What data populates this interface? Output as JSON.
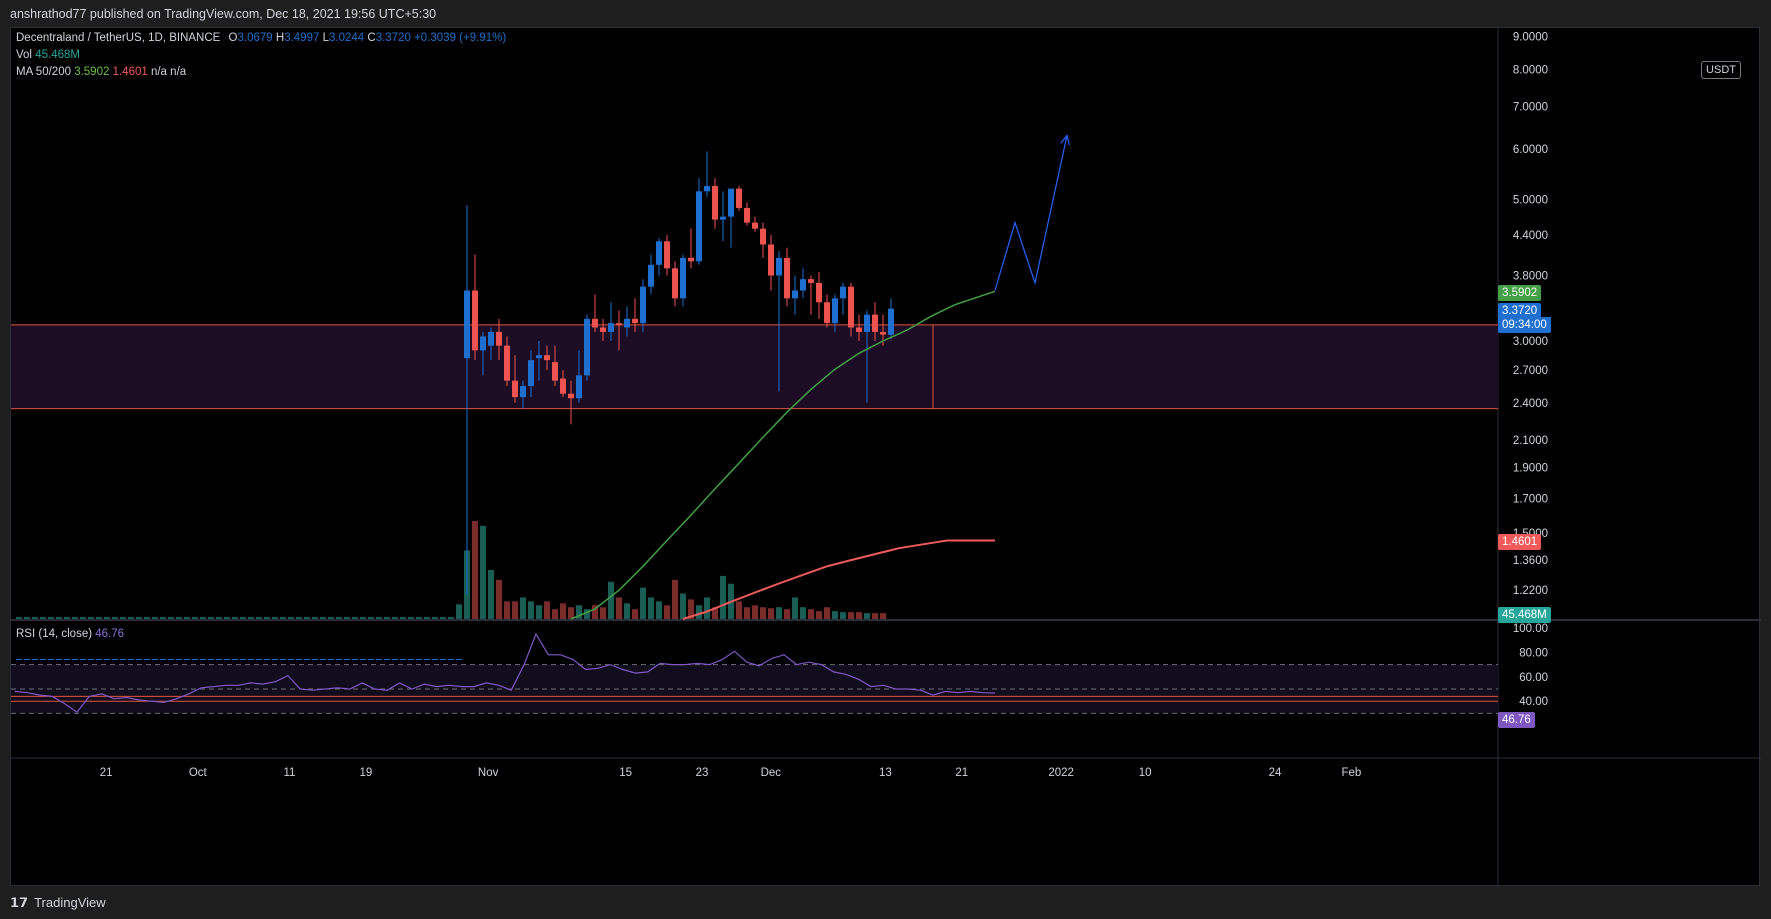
{
  "header": {
    "published": "anshrathod77 published on TradingView.com, Dec 18, 2021 19:56 UTC+5:30"
  },
  "legend": {
    "symbol": "Decentraland / TetherUS, 1D, BINANCE",
    "o_label": "O",
    "o": "3.0679",
    "h_label": "H",
    "h": "3.4997",
    "l_label": "L",
    "l": "3.0244",
    "c_label": "C",
    "c": "3.3720",
    "chg": "+0.3039 (+9.91%)",
    "vol_label": "Vol",
    "vol": "45.468M",
    "ma_label": "MA 50/200",
    "ma50": "3.5902",
    "ma200": "1.4601",
    "na1": "n/a",
    "na2": "n/a",
    "rsi_label": "RSI (14, close)",
    "rsi": "46.76"
  },
  "currency_button": "USDT",
  "badges": {
    "ma50": "3.5902",
    "price": "3.3720",
    "countdown": "09:34:00",
    "ma200": "1.4601",
    "volume": "45.468M",
    "rsi": "46.76"
  },
  "footer": {
    "brand": "TradingView"
  },
  "colors": {
    "up": "#1e6fd0",
    "down": "#ef5350",
    "ma50": "#43a047",
    "ma200": "#f05a5a",
    "zone_fill": "#1c0d24",
    "zone_line": "#e0533d",
    "rsi": "#7e57c2",
    "projection": "#2962ff"
  },
  "chart_data": {
    "type": "candlestick",
    "scale": "log",
    "price_axis_ticks": [
      "9.0000",
      "8.0000",
      "7.0000",
      "6.0000",
      "5.0000",
      "4.4000",
      "3.8000",
      "3.0000",
      "2.7000",
      "2.4000",
      "2.1000",
      "1.9000",
      "1.7000",
      "1.5000",
      "1.3600",
      "1.2200"
    ],
    "time_axis_ticks": [
      "21",
      "Oct",
      "11",
      "19",
      "Nov",
      "15",
      "23",
      "Dec",
      "13",
      "21",
      "2022",
      "10",
      "24",
      "Feb"
    ],
    "rsi_axis_ticks": [
      "100.00",
      "80.00",
      "60.00",
      "40.00"
    ],
    "zone": {
      "top": 3.18,
      "bottom": 2.35
    },
    "candles": [
      {
        "o": 2.82,
        "h": 4.9,
        "l": 1.2,
        "c": 3.6
      },
      {
        "o": 3.6,
        "h": 4.1,
        "l": 2.8,
        "c": 2.9
      },
      {
        "o": 2.9,
        "h": 3.1,
        "l": 2.65,
        "c": 3.05
      },
      {
        "o": 2.95,
        "h": 3.15,
        "l": 2.8,
        "c": 3.1
      },
      {
        "o": 3.1,
        "h": 3.25,
        "l": 2.8,
        "c": 2.95
      },
      {
        "o": 2.95,
        "h": 3.05,
        "l": 2.55,
        "c": 2.6
      },
      {
        "o": 2.6,
        "h": 2.85,
        "l": 2.4,
        "c": 2.45
      },
      {
        "o": 2.45,
        "h": 2.6,
        "l": 2.35,
        "c": 2.55
      },
      {
        "o": 2.55,
        "h": 2.9,
        "l": 2.45,
        "c": 2.8
      },
      {
        "o": 2.82,
        "h": 3.0,
        "l": 2.6,
        "c": 2.85
      },
      {
        "o": 2.85,
        "h": 2.95,
        "l": 2.7,
        "c": 2.8
      },
      {
        "o": 2.78,
        "h": 2.95,
        "l": 2.55,
        "c": 2.6
      },
      {
        "o": 2.62,
        "h": 2.7,
        "l": 2.45,
        "c": 2.48
      },
      {
        "o": 2.48,
        "h": 2.6,
        "l": 2.22,
        "c": 2.44
      },
      {
        "o": 2.44,
        "h": 2.9,
        "l": 2.4,
        "c": 2.65
      },
      {
        "o": 2.65,
        "h": 3.3,
        "l": 2.6,
        "c": 3.25
      },
      {
        "o": 3.25,
        "h": 3.55,
        "l": 3.1,
        "c": 3.15
      },
      {
        "o": 3.15,
        "h": 3.25,
        "l": 3.0,
        "c": 3.1
      },
      {
        "o": 3.1,
        "h": 3.45,
        "l": 3.0,
        "c": 3.2
      },
      {
        "o": 3.2,
        "h": 3.35,
        "l": 2.9,
        "c": 3.18
      },
      {
        "o": 3.15,
        "h": 3.4,
        "l": 3.05,
        "c": 3.25
      },
      {
        "o": 3.25,
        "h": 3.5,
        "l": 3.1,
        "c": 3.2
      },
      {
        "o": 3.2,
        "h": 3.75,
        "l": 3.1,
        "c": 3.65
      },
      {
        "o": 3.65,
        "h": 4.1,
        "l": 3.55,
        "c": 3.95
      },
      {
        "o": 3.95,
        "h": 4.35,
        "l": 3.8,
        "c": 4.3
      },
      {
        "o": 4.3,
        "h": 4.4,
        "l": 3.8,
        "c": 3.9
      },
      {
        "o": 3.9,
        "h": 4.0,
        "l": 3.4,
        "c": 3.5
      },
      {
        "o": 3.5,
        "h": 4.1,
        "l": 3.4,
        "c": 4.05
      },
      {
        "o": 4.05,
        "h": 4.5,
        "l": 3.9,
        "c": 4.0
      },
      {
        "o": 4.0,
        "h": 5.4,
        "l": 3.95,
        "c": 5.15
      },
      {
        "o": 5.15,
        "h": 5.95,
        "l": 5.05,
        "c": 5.25
      },
      {
        "o": 5.25,
        "h": 5.4,
        "l": 4.5,
        "c": 4.65
      },
      {
        "o": 4.65,
        "h": 5.15,
        "l": 4.3,
        "c": 4.7
      },
      {
        "o": 4.7,
        "h": 5.2,
        "l": 4.2,
        "c": 5.2
      },
      {
        "o": 5.2,
        "h": 5.25,
        "l": 4.8,
        "c": 4.85
      },
      {
        "o": 4.85,
        "h": 4.95,
        "l": 4.55,
        "c": 4.6
      },
      {
        "o": 4.6,
        "h": 4.7,
        "l": 4.45,
        "c": 4.5
      },
      {
        "o": 4.5,
        "h": 4.6,
        "l": 4.05,
        "c": 4.25
      },
      {
        "o": 4.25,
        "h": 4.4,
        "l": 3.6,
        "c": 3.8
      },
      {
        "o": 3.8,
        "h": 4.15,
        "l": 2.5,
        "c": 4.05
      },
      {
        "o": 4.05,
        "h": 4.2,
        "l": 3.4,
        "c": 3.5
      },
      {
        "o": 3.5,
        "h": 3.8,
        "l": 3.3,
        "c": 3.6
      },
      {
        "o": 3.6,
        "h": 3.9,
        "l": 3.5,
        "c": 3.75
      },
      {
        "o": 3.75,
        "h": 3.8,
        "l": 3.3,
        "c": 3.7
      },
      {
        "o": 3.7,
        "h": 3.85,
        "l": 3.25,
        "c": 3.45
      },
      {
        "o": 3.45,
        "h": 3.55,
        "l": 3.15,
        "c": 3.2
      },
      {
        "o": 3.2,
        "h": 3.55,
        "l": 3.1,
        "c": 3.5
      },
      {
        "o": 3.5,
        "h": 3.7,
        "l": 3.3,
        "c": 3.65
      },
      {
        "o": 3.65,
        "h": 3.7,
        "l": 3.05,
        "c": 3.15
      },
      {
        "o": 3.15,
        "h": 3.3,
        "l": 3.0,
        "c": 3.1
      },
      {
        "o": 3.1,
        "h": 3.35,
        "l": 2.4,
        "c": 3.3
      },
      {
        "o": 3.3,
        "h": 3.45,
        "l": 3.0,
        "c": 3.1
      },
      {
        "o": 3.1,
        "h": 3.3,
        "l": 2.95,
        "c": 3.07
      },
      {
        "o": 3.0679,
        "h": 3.4997,
        "l": 3.0244,
        "c": 3.372
      }
    ],
    "first_candle_index": 56,
    "pre_listing_close": 1.18,
    "total_slots": 118,
    "ma50": [
      [
        69,
        1.08
      ],
      [
        72,
        1.14
      ],
      [
        75,
        1.22
      ],
      [
        78,
        1.33
      ],
      [
        81,
        1.46
      ],
      [
        84,
        1.6
      ],
      [
        87,
        1.76
      ],
      [
        90,
        1.93
      ],
      [
        93,
        2.12
      ],
      [
        96,
        2.32
      ],
      [
        99,
        2.52
      ],
      [
        102,
        2.71
      ],
      [
        105,
        2.87
      ],
      [
        108,
        3.0
      ],
      [
        111,
        3.12
      ],
      [
        114,
        3.28
      ],
      [
        117,
        3.42
      ],
      [
        120,
        3.52
      ],
      [
        122,
        3.5902
      ]
    ],
    "ma200": [
      [
        83,
        1.08
      ],
      [
        86,
        1.13
      ],
      [
        89,
        1.17
      ],
      [
        92,
        1.21
      ],
      [
        95,
        1.25
      ],
      [
        98,
        1.29
      ],
      [
        101,
        1.33
      ],
      [
        104,
        1.36
      ],
      [
        107,
        1.39
      ],
      [
        110,
        1.42
      ],
      [
        113,
        1.44
      ],
      [
        116,
        1.46
      ],
      [
        122,
        1.4601
      ]
    ],
    "volume": [
      0.02,
      0.02,
      0.02,
      0.02,
      0.02,
      0.02,
      0.02,
      0.02,
      0.02,
      0.02,
      0.02,
      0.02,
      0.02,
      0.02,
      0.02,
      0.02,
      0.02,
      0.02,
      0.02,
      0.02,
      0.02,
      0.02,
      0.02,
      0.02,
      0.02,
      0.02,
      0.02,
      0.02,
      0.02,
      0.02,
      0.02,
      0.02,
      0.02,
      0.02,
      0.02,
      0.02,
      0.02,
      0.02,
      0.02,
      0.02,
      0.02,
      0.02,
      0.02,
      0.02,
      0.02,
      0.02,
      0.02,
      0.02,
      0.02,
      0.02,
      0.02,
      0.02,
      0.02,
      0.02,
      0.02,
      0.15,
      0.7,
      1.0,
      0.95,
      0.5,
      0.4,
      0.18,
      0.18,
      0.22,
      0.18,
      0.14,
      0.18,
      0.1,
      0.16,
      0.12,
      0.14,
      0.1,
      0.14,
      0.12,
      0.38,
      0.22,
      0.16,
      0.1,
      0.32,
      0.22,
      0.18,
      0.14,
      0.4,
      0.26,
      0.2,
      0.14,
      0.22,
      0.12,
      0.44,
      0.36,
      0.18,
      0.12,
      0.14,
      0.12,
      0.11,
      0.12,
      0.1,
      0.22,
      0.12,
      0.1,
      0.08,
      0.12,
      0.08,
      0.07,
      0.07,
      0.07,
      0.06,
      0.06,
      0.06
    ],
    "rsi": [
      [
        0,
        48
      ],
      [
        2,
        47
      ],
      [
        4,
        45
      ],
      [
        6,
        44
      ],
      [
        8,
        38
      ],
      [
        10,
        31
      ],
      [
        12,
        44
      ],
      [
        14,
        46
      ],
      [
        16,
        42
      ],
      [
        18,
        43
      ],
      [
        20,
        41
      ],
      [
        22,
        40
      ],
      [
        24,
        39
      ],
      [
        26,
        42
      ],
      [
        28,
        46
      ],
      [
        30,
        51
      ],
      [
        32,
        52
      ],
      [
        34,
        53
      ],
      [
        36,
        53
      ],
      [
        38,
        55
      ],
      [
        40,
        54
      ],
      [
        42,
        56
      ],
      [
        44,
        61
      ],
      [
        46,
        50
      ],
      [
        48,
        49
      ],
      [
        50,
        50
      ],
      [
        52,
        51
      ],
      [
        54,
        50
      ],
      [
        56,
        55
      ],
      [
        58,
        50
      ],
      [
        60,
        49
      ],
      [
        62,
        55
      ],
      [
        64,
        50
      ],
      [
        66,
        54
      ],
      [
        68,
        52
      ],
      [
        70,
        53
      ],
      [
        72,
        52
      ],
      [
        74,
        52
      ],
      [
        76,
        55
      ],
      [
        78,
        53
      ],
      [
        80,
        49
      ],
      [
        82,
        69
      ],
      [
        84,
        95
      ],
      [
        86,
        78
      ],
      [
        88,
        78
      ],
      [
        90,
        74
      ],
      [
        92,
        66
      ],
      [
        94,
        67
      ],
      [
        96,
        70
      ],
      [
        98,
        66
      ],
      [
        100,
        63
      ],
      [
        102,
        64
      ],
      [
        104,
        71
      ],
      [
        106,
        70
      ],
      [
        108,
        70
      ],
      [
        110,
        71
      ],
      [
        112,
        70
      ],
      [
        114,
        74
      ],
      [
        116,
        81
      ],
      [
        118,
        72
      ],
      [
        120,
        69
      ],
      [
        122,
        75
      ],
      [
        124,
        78
      ],
      [
        126,
        70
      ],
      [
        128,
        72
      ],
      [
        130,
        70
      ],
      [
        132,
        64
      ],
      [
        134,
        62
      ],
      [
        136,
        58
      ],
      [
        138,
        52
      ],
      [
        140,
        53
      ],
      [
        142,
        50
      ],
      [
        144,
        50
      ],
      [
        146,
        49
      ],
      [
        148,
        45
      ],
      [
        150,
        48
      ],
      [
        152,
        47
      ],
      [
        154,
        48
      ],
      [
        156,
        47
      ],
      [
        158,
        46.76
      ]
    ],
    "projection": [
      [
        122,
        3.6
      ],
      [
        124.5,
        4.6
      ],
      [
        127,
        3.7
      ],
      [
        131,
        6.3
      ]
    ]
  }
}
